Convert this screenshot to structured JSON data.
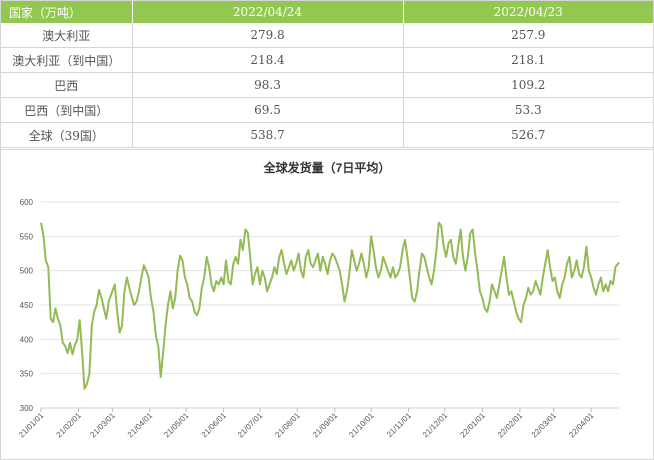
{
  "table": {
    "headers": [
      "国家（万吨）",
      "2022/04/24",
      "2022/04/23"
    ],
    "rows": [
      {
        "label": "澳大利亚",
        "v1": "279.8",
        "v2": "257.9"
      },
      {
        "label": "澳大利亚（到中国）",
        "v1": "218.4",
        "v2": "218.1"
      },
      {
        "label": "巴西",
        "v1": "98.3",
        "v2": "109.2"
      },
      {
        "label": "巴西（到中国）",
        "v1": "69.5",
        "v2": "53.3"
      },
      {
        "label": "全球（39国）",
        "v1": "538.7",
        "v2": "526.7"
      }
    ]
  },
  "colors": {
    "header_bg": "#92c850",
    "line": "#92bb55",
    "grid": "#e3e3e3"
  },
  "chart_data": {
    "type": "line",
    "title": "全球发货量（7日平均）",
    "xlabel": "",
    "ylabel": "",
    "ylim": [
      300,
      600
    ],
    "yticks": [
      300,
      350,
      400,
      450,
      500,
      550,
      600
    ],
    "xticks": [
      "21/01/01",
      "21/02/01",
      "21/03/01",
      "21/04/01",
      "21/05/01",
      "21/06/01",
      "21/07/01",
      "21/08/01",
      "21/09/01",
      "21/10/01",
      "21/11/01",
      "21/12/01",
      "22/01/01",
      "22/02/01",
      "22/03/01",
      "22/04/01"
    ],
    "grid": true,
    "legend": "none",
    "x_start": "2021-01-01",
    "x_end": "2022-04-24",
    "series": [
      {
        "name": "",
        "points": [
          [
            "2021-01-01",
            570
          ],
          [
            "2021-01-03",
            552
          ],
          [
            "2021-01-05",
            515
          ],
          [
            "2021-01-07",
            505
          ],
          [
            "2021-01-09",
            430
          ],
          [
            "2021-01-11",
            425
          ],
          [
            "2021-01-13",
            445
          ],
          [
            "2021-01-15",
            430
          ],
          [
            "2021-01-17",
            420
          ],
          [
            "2021-01-19",
            395
          ],
          [
            "2021-01-21",
            390
          ],
          [
            "2021-01-23",
            380
          ],
          [
            "2021-01-25",
            395
          ],
          [
            "2021-01-27",
            378
          ],
          [
            "2021-01-29",
            392
          ],
          [
            "2021-01-31",
            400
          ],
          [
            "2021-02-02",
            428
          ],
          [
            "2021-02-04",
            382
          ],
          [
            "2021-02-06",
            328
          ],
          [
            "2021-02-08",
            335
          ],
          [
            "2021-02-10",
            350
          ],
          [
            "2021-02-12",
            420
          ],
          [
            "2021-02-14",
            440
          ],
          [
            "2021-02-16",
            450
          ],
          [
            "2021-02-18",
            472
          ],
          [
            "2021-02-20",
            460
          ],
          [
            "2021-02-22",
            445
          ],
          [
            "2021-02-24",
            430
          ],
          [
            "2021-02-26",
            455
          ],
          [
            "2021-03-01",
            470
          ],
          [
            "2021-03-03",
            480
          ],
          [
            "2021-03-05",
            440
          ],
          [
            "2021-03-07",
            410
          ],
          [
            "2021-03-09",
            420
          ],
          [
            "2021-03-11",
            470
          ],
          [
            "2021-03-13",
            490
          ],
          [
            "2021-03-15",
            475
          ],
          [
            "2021-03-17",
            462
          ],
          [
            "2021-03-19",
            450
          ],
          [
            "2021-03-21",
            455
          ],
          [
            "2021-03-23",
            470
          ],
          [
            "2021-03-25",
            490
          ],
          [
            "2021-03-27",
            508
          ],
          [
            "2021-03-29",
            500
          ],
          [
            "2021-03-31",
            490
          ],
          [
            "2021-04-02",
            460
          ],
          [
            "2021-04-04",
            440
          ],
          [
            "2021-04-06",
            405
          ],
          [
            "2021-04-08",
            390
          ],
          [
            "2021-04-10",
            345
          ],
          [
            "2021-04-12",
            380
          ],
          [
            "2021-04-14",
            420
          ],
          [
            "2021-04-16",
            450
          ],
          [
            "2021-04-18",
            470
          ],
          [
            "2021-04-20",
            445
          ],
          [
            "2021-04-22",
            460
          ],
          [
            "2021-04-24",
            500
          ],
          [
            "2021-04-26",
            522
          ],
          [
            "2021-04-28",
            515
          ],
          [
            "2021-04-30",
            490
          ],
          [
            "2021-05-02",
            480
          ],
          [
            "2021-05-04",
            460
          ],
          [
            "2021-05-06",
            455
          ],
          [
            "2021-05-08",
            440
          ],
          [
            "2021-05-10",
            435
          ],
          [
            "2021-05-12",
            445
          ],
          [
            "2021-05-14",
            475
          ],
          [
            "2021-05-16",
            490
          ],
          [
            "2021-05-18",
            520
          ],
          [
            "2021-05-20",
            505
          ],
          [
            "2021-05-22",
            480
          ],
          [
            "2021-05-24",
            470
          ],
          [
            "2021-05-26",
            485
          ],
          [
            "2021-05-28",
            480
          ],
          [
            "2021-05-30",
            490
          ],
          [
            "2021-06-01",
            480
          ],
          [
            "2021-06-03",
            515
          ],
          [
            "2021-06-05",
            485
          ],
          [
            "2021-06-07",
            480
          ],
          [
            "2021-06-09",
            510
          ],
          [
            "2021-06-11",
            520
          ],
          [
            "2021-06-13",
            510
          ],
          [
            "2021-06-15",
            545
          ],
          [
            "2021-06-17",
            530
          ],
          [
            "2021-06-19",
            560
          ],
          [
            "2021-06-21",
            555
          ],
          [
            "2021-06-23",
            520
          ],
          [
            "2021-06-25",
            480
          ],
          [
            "2021-06-27",
            495
          ],
          [
            "2021-06-29",
            505
          ],
          [
            "2021-07-01",
            480
          ],
          [
            "2021-07-03",
            500
          ],
          [
            "2021-07-05",
            490
          ],
          [
            "2021-07-07",
            470
          ],
          [
            "2021-07-09",
            480
          ],
          [
            "2021-07-11",
            490
          ],
          [
            "2021-07-13",
            505
          ],
          [
            "2021-07-15",
            495
          ],
          [
            "2021-07-17",
            520
          ],
          [
            "2021-07-19",
            530
          ],
          [
            "2021-07-21",
            510
          ],
          [
            "2021-07-23",
            495
          ],
          [
            "2021-07-25",
            505
          ],
          [
            "2021-07-27",
            515
          ],
          [
            "2021-07-29",
            500
          ],
          [
            "2021-07-31",
            510
          ],
          [
            "2021-08-02",
            525
          ],
          [
            "2021-08-04",
            500
          ],
          [
            "2021-08-06",
            490
          ],
          [
            "2021-08-08",
            520
          ],
          [
            "2021-08-10",
            530
          ],
          [
            "2021-08-12",
            510
          ],
          [
            "2021-08-14",
            505
          ],
          [
            "2021-08-16",
            515
          ],
          [
            "2021-08-18",
            525
          ],
          [
            "2021-08-20",
            500
          ],
          [
            "2021-08-22",
            520
          ],
          [
            "2021-08-24",
            510
          ],
          [
            "2021-08-26",
            495
          ],
          [
            "2021-08-28",
            515
          ],
          [
            "2021-08-30",
            525
          ],
          [
            "2021-09-01",
            520
          ],
          [
            "2021-09-03",
            510
          ],
          [
            "2021-09-05",
            500
          ],
          [
            "2021-09-07",
            480
          ],
          [
            "2021-09-09",
            455
          ],
          [
            "2021-09-11",
            470
          ],
          [
            "2021-09-13",
            495
          ],
          [
            "2021-09-15",
            530
          ],
          [
            "2021-09-17",
            515
          ],
          [
            "2021-09-19",
            500
          ],
          [
            "2021-09-21",
            510
          ],
          [
            "2021-09-23",
            525
          ],
          [
            "2021-09-25",
            510
          ],
          [
            "2021-09-27",
            490
          ],
          [
            "2021-09-29",
            505
          ],
          [
            "2021-10-01",
            550
          ],
          [
            "2021-10-03",
            530
          ],
          [
            "2021-10-05",
            505
          ],
          [
            "2021-10-07",
            490
          ],
          [
            "2021-10-09",
            500
          ],
          [
            "2021-10-11",
            520
          ],
          [
            "2021-10-13",
            510
          ],
          [
            "2021-10-15",
            500
          ],
          [
            "2021-10-17",
            490
          ],
          [
            "2021-10-19",
            505
          ],
          [
            "2021-10-21",
            490
          ],
          [
            "2021-10-23",
            495
          ],
          [
            "2021-10-25",
            505
          ],
          [
            "2021-10-27",
            530
          ],
          [
            "2021-10-29",
            545
          ],
          [
            "2021-10-31",
            520
          ],
          [
            "2021-11-02",
            490
          ],
          [
            "2021-11-04",
            460
          ],
          [
            "2021-11-06",
            455
          ],
          [
            "2021-11-08",
            470
          ],
          [
            "2021-11-10",
            500
          ],
          [
            "2021-11-12",
            525
          ],
          [
            "2021-11-14",
            520
          ],
          [
            "2021-11-16",
            505
          ],
          [
            "2021-11-18",
            490
          ],
          [
            "2021-11-20",
            480
          ],
          [
            "2021-11-22",
            500
          ],
          [
            "2021-11-24",
            530
          ],
          [
            "2021-11-26",
            570
          ],
          [
            "2021-11-28",
            565
          ],
          [
            "2021-11-30",
            535
          ],
          [
            "2021-12-02",
            520
          ],
          [
            "2021-12-04",
            540
          ],
          [
            "2021-12-06",
            545
          ],
          [
            "2021-12-08",
            520
          ],
          [
            "2021-12-10",
            510
          ],
          [
            "2021-12-12",
            535
          ],
          [
            "2021-12-14",
            560
          ],
          [
            "2021-12-16",
            520
          ],
          [
            "2021-12-18",
            500
          ],
          [
            "2021-12-20",
            520
          ],
          [
            "2021-12-22",
            555
          ],
          [
            "2021-12-24",
            560
          ],
          [
            "2021-12-26",
            525
          ],
          [
            "2021-12-28",
            500
          ],
          [
            "2021-12-30",
            470
          ],
          [
            "2022-01-01",
            460
          ],
          [
            "2022-01-03",
            445
          ],
          [
            "2022-01-05",
            440
          ],
          [
            "2022-01-07",
            455
          ],
          [
            "2022-01-09",
            480
          ],
          [
            "2022-01-11",
            470
          ],
          [
            "2022-01-13",
            460
          ],
          [
            "2022-01-15",
            480
          ],
          [
            "2022-01-17",
            500
          ],
          [
            "2022-01-19",
            520
          ],
          [
            "2022-01-21",
            490
          ],
          [
            "2022-01-23",
            465
          ],
          [
            "2022-01-25",
            470
          ],
          [
            "2022-01-27",
            455
          ],
          [
            "2022-01-29",
            440
          ],
          [
            "2022-01-31",
            430
          ],
          [
            "2022-02-02",
            425
          ],
          [
            "2022-02-04",
            450
          ],
          [
            "2022-02-06",
            460
          ],
          [
            "2022-02-08",
            475
          ],
          [
            "2022-02-10",
            465
          ],
          [
            "2022-02-12",
            470
          ],
          [
            "2022-02-14",
            485
          ],
          [
            "2022-02-16",
            475
          ],
          [
            "2022-02-18",
            465
          ],
          [
            "2022-02-20",
            490
          ],
          [
            "2022-02-22",
            510
          ],
          [
            "2022-02-24",
            530
          ],
          [
            "2022-02-26",
            505
          ],
          [
            "2022-02-28",
            485
          ],
          [
            "2022-03-02",
            490
          ],
          [
            "2022-03-04",
            470
          ],
          [
            "2022-03-06",
            460
          ],
          [
            "2022-03-08",
            480
          ],
          [
            "2022-03-10",
            490
          ],
          [
            "2022-03-12",
            510
          ],
          [
            "2022-03-14",
            520
          ],
          [
            "2022-03-16",
            490
          ],
          [
            "2022-03-18",
            500
          ],
          [
            "2022-03-20",
            515
          ],
          [
            "2022-03-22",
            495
          ],
          [
            "2022-03-24",
            490
          ],
          [
            "2022-03-26",
            505
          ],
          [
            "2022-03-28",
            535
          ],
          [
            "2022-03-30",
            500
          ],
          [
            "2022-04-01",
            490
          ],
          [
            "2022-04-03",
            475
          ],
          [
            "2022-04-05",
            465
          ],
          [
            "2022-04-07",
            480
          ],
          [
            "2022-04-09",
            490
          ],
          [
            "2022-04-11",
            470
          ],
          [
            "2022-04-13",
            480
          ],
          [
            "2022-04-15",
            470
          ],
          [
            "2022-04-17",
            485
          ],
          [
            "2022-04-19",
            480
          ],
          [
            "2022-04-21",
            505
          ],
          [
            "2022-04-24",
            512
          ]
        ]
      }
    ]
  }
}
